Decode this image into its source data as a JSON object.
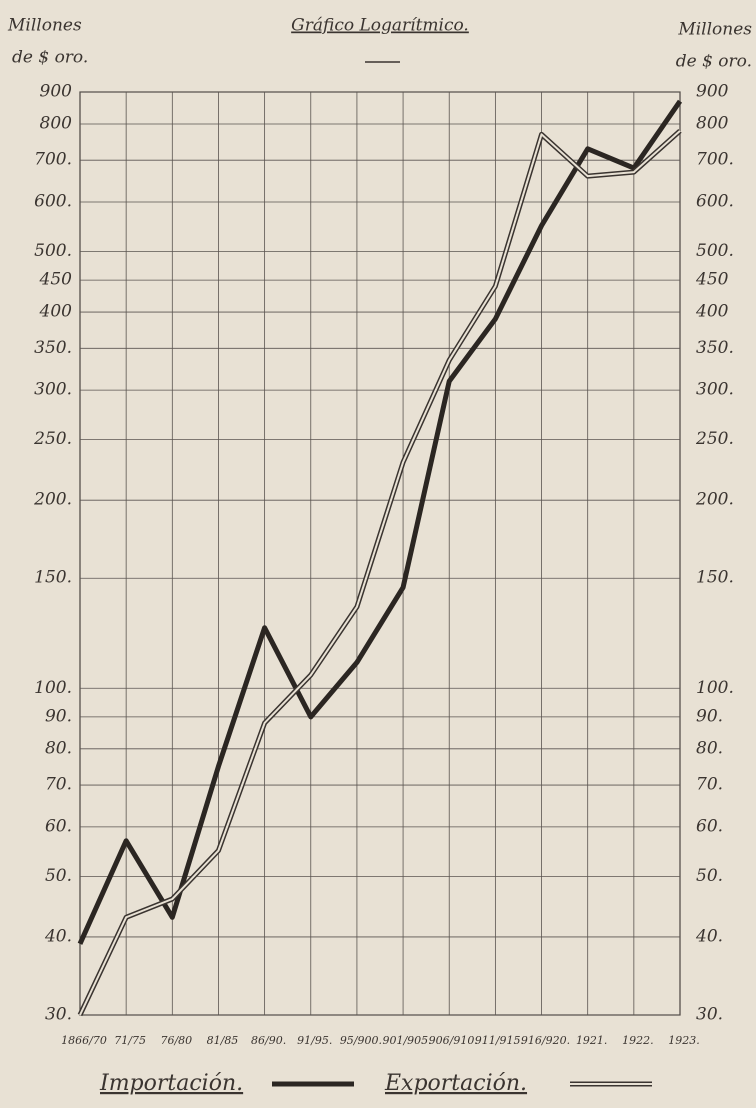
{
  "chart_data": {
    "type": "line",
    "title": "Gráfico Logarítmico.",
    "y_label": [
      "Millones",
      "de $ oro."
    ],
    "categories": [
      "1866/70",
      "71/75",
      "76/80",
      "81/85",
      "86/90.",
      "91/95.",
      "95/900.",
      "901/905.",
      "906/910.",
      "911/915.",
      "916/920.",
      "1921.",
      "1922.",
      "1923."
    ],
    "series": [
      {
        "name": "Importación.",
        "color": "#2b2622",
        "line_style": "solid",
        "values": [
          39,
          57,
          43,
          75,
          125,
          90,
          110,
          145,
          310,
          390,
          550,
          730,
          680,
          870
        ]
      },
      {
        "name": "Exportación.",
        "color": "#3a3430",
        "line_style": "double",
        "values": [
          30,
          43,
          46,
          55,
          88,
          105,
          135,
          230,
          335,
          440,
          770,
          660,
          670,
          780
        ]
      }
    ],
    "log_scale": true,
    "ylim": [
      30,
      900
    ],
    "yticks": [
      {
        "value": 30,
        "label": "30."
      },
      {
        "value": 40,
        "label": "40."
      },
      {
        "value": 50,
        "label": "50."
      },
      {
        "value": 60,
        "label": "60."
      },
      {
        "value": 70,
        "label": "70."
      },
      {
        "value": 80,
        "label": "80."
      },
      {
        "value": 90,
        "label": "90."
      },
      {
        "value": 100,
        "label": "100."
      },
      {
        "value": 150,
        "label": "150."
      },
      {
        "value": 200,
        "label": "200."
      },
      {
        "value": 250,
        "label": "250."
      },
      {
        "value": 300,
        "label": "300."
      },
      {
        "value": 350,
        "label": "350."
      },
      400,
      450,
      {
        "value": 500,
        "label": "500."
      },
      {
        "value": 600,
        "label": "600."
      },
      {
        "value": 700,
        "label": "700."
      },
      800,
      900
    ],
    "grid": true
  }
}
